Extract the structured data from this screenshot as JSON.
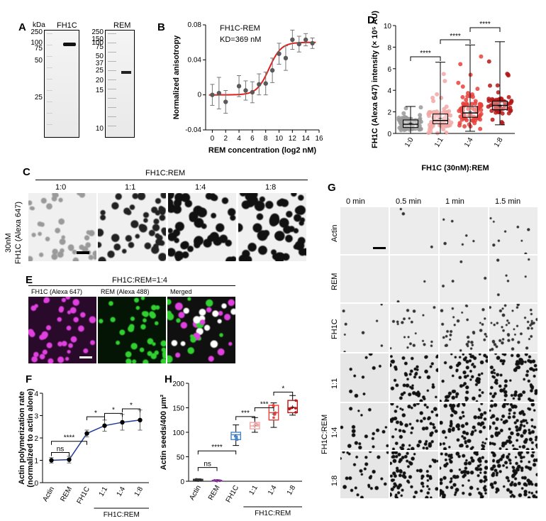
{
  "panels": {
    "A": "A",
    "B": "B",
    "C": "C",
    "D": "D",
    "E": "E",
    "F": "F",
    "G": "G",
    "H": "H"
  },
  "gel": {
    "kda": "kDa",
    "lane1": "FH1C",
    "lane2": "REM",
    "ladder1": [
      "250",
      "100",
      "75",
      "50",
      "25"
    ],
    "ladder2": [
      "250",
      "150",
      "100",
      "75",
      "50",
      "37",
      "25",
      "20",
      "15",
      "10"
    ]
  },
  "anisotropy": {
    "chart_data": {
      "type": "scatter",
      "title": "FH1C-REM",
      "annotation": "KD=369 nM",
      "xlabel": "REM concentration (log2 nM)",
      "ylabel": "Normalized anisotropy",
      "xlim": [
        -1,
        16
      ],
      "ylim": [
        -0.04,
        0.08
      ],
      "xticks": [
        "0",
        "2",
        "4",
        "6",
        "8",
        "10",
        "12",
        "14",
        "16"
      ],
      "yticks": [
        "-0.04",
        "0",
        "0.04",
        "0.08"
      ],
      "x": [
        0,
        1,
        2,
        4,
        5,
        6,
        7,
        8,
        9,
        10,
        11,
        12,
        13,
        14,
        15
      ],
      "y": [
        0.0,
        0.002,
        -0.008,
        0.01,
        0.005,
        0.003,
        0.012,
        0.013,
        0.028,
        0.047,
        0.042,
        0.063,
        0.058,
        0.063,
        0.059
      ],
      "err": [
        0.012,
        0.018,
        0.013,
        0.012,
        0.011,
        0.012,
        0.012,
        0.013,
        0.014,
        0.012,
        0.014,
        0.011,
        0.009,
        0.007,
        0.006
      ],
      "fit": {
        "name": "fit",
        "kd_log2": 8.5,
        "top": 0.06,
        "color": "#e0201c"
      }
    }
  },
  "intensity": {
    "chart_data": {
      "type": "box",
      "ylabel": "FH1C (Alexa 647) intensity (× 10⁵ AU)",
      "xlabel": "FH1C (30nM):REM",
      "categories": [
        "1:0",
        "1:1",
        "1:4",
        "1:8"
      ],
      "ylim": [
        0,
        10
      ],
      "yticks": [
        "0",
        "2",
        "4",
        "6",
        "8",
        "10"
      ],
      "boxes": [
        {
          "min": 0,
          "q1": 0.55,
          "median": 0.85,
          "q3": 1.25,
          "max": 2.5,
          "mean": 0.95,
          "color": "#9a9a9a"
        },
        {
          "min": 0,
          "q1": 0.9,
          "median": 1.2,
          "q3": 1.8,
          "max": 6.6,
          "mean": 1.4,
          "color": "#f2a7a4"
        },
        {
          "min": 0.2,
          "q1": 1.5,
          "median": 1.9,
          "q3": 2.5,
          "max": 8.2,
          "mean": 2.05,
          "color": "#e8413c"
        },
        {
          "min": 0.8,
          "q1": 2.2,
          "median": 2.6,
          "q3": 3.0,
          "max": 8.5,
          "mean": 2.55,
          "color": "#b51818"
        }
      ],
      "significance": [
        {
          "from": 0,
          "to": 1,
          "label": "****"
        },
        {
          "from": 1,
          "to": 2,
          "label": "****"
        },
        {
          "from": 2,
          "to": 3,
          "label": "****"
        }
      ]
    }
  },
  "panelC": {
    "header": "FH1C:REM",
    "ratios": [
      "1:0",
      "1:1",
      "1:4",
      "1:8"
    ],
    "rowlabel1": "30nM",
    "rowlabel2": "FH1C (Alexa 647)"
  },
  "panelE": {
    "header": "FH1C:REM=1:4",
    "ch1": "FH1C (Alexa 647)",
    "ch2": "REM (Alexa 488)",
    "ch3": "Merged"
  },
  "panelG": {
    "times": [
      "0 min",
      "0.5 min",
      "1 min",
      "1.5 min"
    ],
    "rows": [
      "Actin",
      "REM",
      "FH1C",
      "1:1",
      "1:4",
      "1:8"
    ],
    "grouplabel": "FH1C:REM"
  },
  "polymerization": {
    "chart_data": {
      "type": "line",
      "ylabel1": "Actin polymerization rate",
      "ylabel2": "(normalized to actin alone)",
      "categories": [
        "Actin",
        "REM",
        "FH1C",
        "1:1",
        "1:4",
        "1:8"
      ],
      "group_label": "FH1C:REM",
      "ylim": [
        0,
        4
      ],
      "yticks": [
        "0",
        "1",
        "2",
        "3",
        "4"
      ],
      "values": [
        1.0,
        1.03,
        2.2,
        2.55,
        2.7,
        2.8
      ],
      "err": [
        0.12,
        0.15,
        0.15,
        0.25,
        0.35,
        0.45
      ],
      "color": "#1f3a93",
      "significance": [
        {
          "from": 0,
          "to": 1,
          "label": "ns"
        },
        {
          "from": 0,
          "to": 2,
          "label": "****"
        },
        {
          "from": 2,
          "to": 3,
          "label": "*"
        },
        {
          "from": 3,
          "to": 4,
          "label": "*"
        },
        {
          "from": 4,
          "to": 5,
          "label": "*"
        }
      ]
    }
  },
  "seeds": {
    "chart_data": {
      "type": "box",
      "ylabel": "Actin seeds/400 μm²",
      "categories": [
        "Actin",
        "REM",
        "FH1C",
        "1:1",
        "1:4",
        "1:8"
      ],
      "group_label": "FH1C:REM",
      "ylim": [
        0,
        200
      ],
      "yticks": [
        "0",
        "50",
        "100",
        "150",
        "200"
      ],
      "boxes": [
        {
          "min": 1,
          "q1": 2,
          "median": 3,
          "q3": 4,
          "max": 5,
          "mean": 3,
          "color": "#333333"
        },
        {
          "min": 0,
          "q1": 1,
          "median": 1.5,
          "q3": 2,
          "max": 3,
          "mean": 1.5,
          "color": "#8b2fa0"
        },
        {
          "min": 73,
          "q1": 85,
          "median": 95,
          "q3": 100,
          "max": 115,
          "mean": 93,
          "color": "#4a86c5"
        },
        {
          "min": 100,
          "q1": 107,
          "median": 113,
          "q3": 120,
          "max": 130,
          "mean": 114,
          "color": "#f2a7a4"
        },
        {
          "min": 110,
          "q1": 125,
          "median": 140,
          "q3": 155,
          "max": 160,
          "mean": 138,
          "color": "#e8413c"
        },
        {
          "min": 135,
          "q1": 140,
          "median": 150,
          "q3": 165,
          "max": 175,
          "mean": 152,
          "color": "#b51818"
        }
      ],
      "significance": [
        {
          "from": 0,
          "to": 1,
          "label": "ns"
        },
        {
          "from": 0,
          "to": 2,
          "label": "****"
        },
        {
          "from": 2,
          "to": 3,
          "label": "***"
        },
        {
          "from": 3,
          "to": 4,
          "label": "***"
        },
        {
          "from": 4,
          "to": 5,
          "label": "*"
        }
      ]
    }
  }
}
